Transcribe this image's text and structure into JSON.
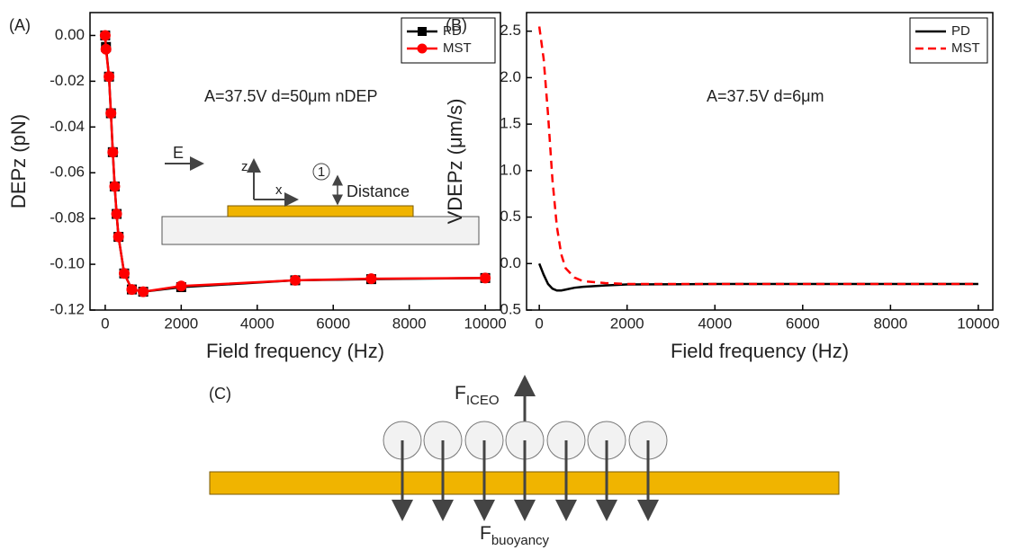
{
  "chart_data": [
    {
      "type": "line",
      "panel_label": "(A)",
      "x_label": "Field frequency (Hz)",
      "y_label": "DEPz (pN)",
      "annotation": "A=37.5V d=50μm nDEP",
      "x": [
        0,
        20,
        100,
        150,
        200,
        250,
        300,
        350,
        500,
        700,
        1000,
        2000,
        5000,
        7000,
        10000
      ],
      "series": [
        {
          "name": "PD",
          "color": "#000000",
          "marker": "square",
          "dash": false,
          "values": [
            0,
            -0.005,
            -0.018,
            -0.034,
            -0.051,
            -0.066,
            -0.078,
            -0.088,
            -0.104,
            -0.111,
            -0.112,
            -0.11,
            -0.107,
            -0.1065,
            -0.106
          ]
        },
        {
          "name": "MST",
          "color": "#ff0000",
          "marker": "circle",
          "dash": false,
          "values": [
            0,
            -0.006,
            -0.018,
            -0.034,
            -0.051,
            -0.066,
            -0.078,
            -0.088,
            -0.104,
            -0.111,
            -0.112,
            -0.1095,
            -0.107,
            -0.1063,
            -0.106
          ]
        }
      ],
      "xlim": [
        -400,
        10400
      ],
      "ylim": [
        -0.12,
        0.01
      ],
      "xticks": [
        0,
        2000,
        4000,
        6000,
        8000,
        10000
      ],
      "yticks": [
        {
          "value": 0,
          "label": "0.00"
        },
        {
          "value": -0.02,
          "label": "-0.02"
        },
        {
          "value": -0.04,
          "label": "-0.04"
        },
        {
          "value": -0.06,
          "label": "-0.06"
        },
        {
          "value": -0.08,
          "label": "-0.08"
        },
        {
          "value": -0.1,
          "label": "-0.10"
        },
        {
          "value": -0.12,
          "label": "-0.12"
        }
      ],
      "legend": "upper right",
      "inset": {
        "field": "E",
        "z_axis": "z",
        "x_axis": "x",
        "point": "1",
        "distance": "Distance"
      }
    },
    {
      "type": "line",
      "panel_label": "(B)",
      "x_label": "Field frequency (Hz)",
      "y_label": "VDEPz (μm/s)",
      "annotation": "A=37.5V d=6μm",
      "x": [
        0,
        100,
        200,
        300,
        400,
        500,
        600,
        800,
        1000,
        1500,
        2000,
        4000,
        6000,
        8000,
        10000
      ],
      "series": [
        {
          "name": "PD",
          "color": "#000000",
          "dash": false,
          "values": [
            0,
            -0.12,
            -0.22,
            -0.27,
            -0.29,
            -0.29,
            -0.28,
            -0.26,
            -0.25,
            -0.235,
            -0.225,
            -0.22,
            -0.22,
            -0.22,
            -0.22
          ]
        },
        {
          "name": "MST",
          "color": "#ff0000",
          "dash": true,
          "values": [
            2.55,
            2.2,
            1.6,
            0.9,
            0.4,
            0.1,
            -0.05,
            -0.15,
            -0.19,
            -0.21,
            -0.22,
            -0.22,
            -0.22,
            -0.22,
            -0.22
          ]
        }
      ],
      "xlim": [
        -290,
        10330
      ],
      "ylim": [
        -0.5,
        2.7
      ],
      "xticks": [
        0,
        2000,
        4000,
        6000,
        8000,
        10000
      ],
      "yticks": [
        -0.5,
        {
          "value": 0,
          "label": "0.0"
        },
        0.5,
        {
          "value": 1,
          "label": "1.0"
        },
        1.5,
        {
          "value": 2,
          "label": "2.0"
        },
        2.5
      ],
      "legend": "upper right"
    }
  ],
  "diagram": {
    "panel_label": "(C)",
    "upward_force": {
      "symbol": "F",
      "subscript": "ICEO"
    },
    "downward_force": {
      "symbol": "F",
      "subscript": "buoyancy"
    }
  }
}
